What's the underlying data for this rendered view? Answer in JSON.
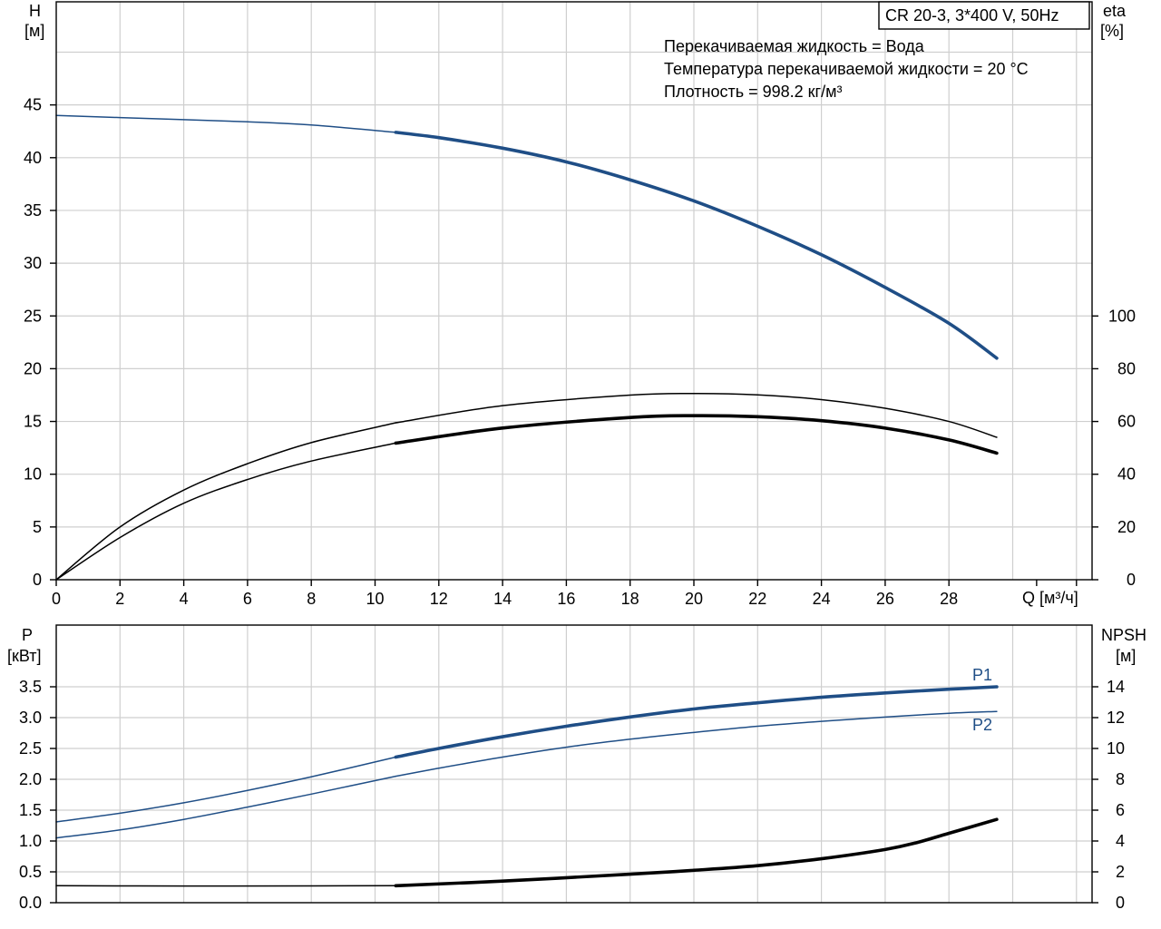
{
  "model_label": "CR 20-3, 3*400 V, 50Hz",
  "info_lines": [
    "Перекачиваемая жидкость = Вода",
    "Температура перекачиваемой жидкости = 20 °C",
    "Плотность = 998.2 кг/м³"
  ],
  "colors": {
    "blue": "#1f4e86",
    "black": "#000000",
    "grid": "#cfcfcf"
  },
  "chart_data": [
    {
      "type": "line",
      "title": "",
      "xlabel": "Q [м³/ч]",
      "ylabel_left": "H\n[м]",
      "ylabel_right": "eta\n[%]",
      "xlim": [
        0,
        32
      ],
      "ylim_left": [
        0,
        50
      ],
      "ylim_right": [
        0,
        100
      ],
      "x_ticks": [
        "0",
        "2",
        "4",
        "6",
        "8",
        "10",
        "12",
        "14",
        "16",
        "18",
        "20",
        "22",
        "24",
        "26",
        "28"
      ],
      "y_ticks_left": [
        "0",
        "5",
        "10",
        "15",
        "20",
        "25",
        "30",
        "35",
        "40",
        "45"
      ],
      "y_ticks_right": [
        "0",
        "20",
        "40",
        "60",
        "80",
        "100"
      ],
      "grid": true,
      "series": [
        {
          "name": "",
          "axis": "left",
          "color": "#1f4e86",
          "x": [
            0,
            2,
            4,
            6,
            8,
            10.65
          ],
          "y": [
            44.0,
            43.8,
            43.6,
            43.4,
            43.1,
            42.4
          ],
          "style": "thin"
        },
        {
          "name": "",
          "axis": "left",
          "color": "#1f4e86",
          "x": [
            10.65,
            12,
            14,
            16,
            18,
            20,
            22,
            24,
            26,
            28,
            29.5
          ],
          "y": [
            42.4,
            41.9,
            40.9,
            39.6,
            37.9,
            35.9,
            33.5,
            30.8,
            27.7,
            24.3,
            21.0
          ],
          "style": "thick"
        },
        {
          "name": "",
          "axis": "right",
          "color": "#000000",
          "x": [
            0,
            2,
            4,
            6,
            8,
            10.65
          ],
          "y": [
            0,
            20,
            34,
            44,
            52,
            59.5
          ],
          "style": "thin"
        },
        {
          "name": "",
          "axis": "right",
          "color": "#000000",
          "x": [
            10.65,
            14,
            18,
            20,
            22,
            24,
            26,
            28,
            29.5
          ],
          "y": [
            59.5,
            66,
            70,
            70.6,
            70.1,
            68.3,
            65.0,
            60.0,
            54.0
          ],
          "style": "thin"
        },
        {
          "name": "",
          "axis": "right",
          "color": "#000000",
          "x": [
            0,
            2,
            4,
            6,
            8,
            10.65
          ],
          "y": [
            0,
            16,
            29,
            38,
            45,
            51.8
          ],
          "style": "thin"
        },
        {
          "name": "",
          "axis": "right",
          "color": "#000000",
          "x": [
            10.65,
            14,
            18,
            20,
            22,
            24,
            26,
            28,
            29.5
          ],
          "y": [
            51.8,
            57.5,
            61.5,
            62.2,
            61.8,
            60.3,
            57.5,
            53.0,
            48.0
          ],
          "style": "thick"
        }
      ]
    },
    {
      "type": "line",
      "title": "",
      "xlabel": "",
      "ylabel_left": "P\n[кВт]",
      "ylabel_right": "NPSH\n[м]",
      "xlim": [
        0,
        32
      ],
      "ylim_left": [
        0,
        4.0
      ],
      "ylim_right": [
        0,
        16
      ],
      "y_ticks_left": [
        "0.0",
        "0.5",
        "1.0",
        "1.5",
        "2.0",
        "2.5",
        "3.0",
        "3.5"
      ],
      "y_ticks_right": [
        "0",
        "2",
        "4",
        "6",
        "8",
        "10",
        "12",
        "14"
      ],
      "grid": true,
      "series": [
        {
          "name": "",
          "axis": "left",
          "color": "#1f4e86",
          "x": [
            0,
            2,
            4,
            6,
            8,
            10.65
          ],
          "y": [
            1.31,
            1.45,
            1.62,
            1.82,
            2.04,
            2.36
          ],
          "style": "thin"
        },
        {
          "name": "P1",
          "axis": "left",
          "color": "#1f4e86",
          "x": [
            10.65,
            12,
            14,
            16,
            18,
            20,
            22,
            24,
            26,
            28,
            29.5
          ],
          "y": [
            2.36,
            2.5,
            2.69,
            2.86,
            3.01,
            3.14,
            3.24,
            3.33,
            3.4,
            3.46,
            3.5
          ],
          "style": "thick"
        },
        {
          "name": "",
          "axis": "left",
          "color": "#1f4e86",
          "x": [
            0,
            2,
            4,
            6,
            8,
            10.65
          ],
          "y": [
            1.05,
            1.18,
            1.35,
            1.55,
            1.76,
            2.05
          ],
          "style": "thin"
        },
        {
          "name": "P2",
          "axis": "left",
          "color": "#1f4e86",
          "x": [
            10.65,
            12,
            14,
            16,
            18,
            20,
            22,
            24,
            26,
            28,
            29.5
          ],
          "y": [
            2.05,
            2.18,
            2.36,
            2.52,
            2.65,
            2.76,
            2.86,
            2.94,
            3.01,
            3.07,
            3.1
          ],
          "style": "thin"
        },
        {
          "name": "",
          "axis": "right",
          "color": "#000000",
          "x": [
            0,
            4,
            8,
            10.65
          ],
          "y": [
            1.1,
            1.08,
            1.09,
            1.1
          ],
          "style": "thin"
        },
        {
          "name": "",
          "axis": "right",
          "color": "#000000",
          "x": [
            10.65,
            14,
            18,
            20,
            22,
            24,
            26,
            27,
            28,
            29.5
          ],
          "y": [
            1.1,
            1.4,
            1.85,
            2.1,
            2.4,
            2.85,
            3.45,
            3.9,
            4.5,
            5.4
          ],
          "style": "thick"
        }
      ]
    }
  ]
}
